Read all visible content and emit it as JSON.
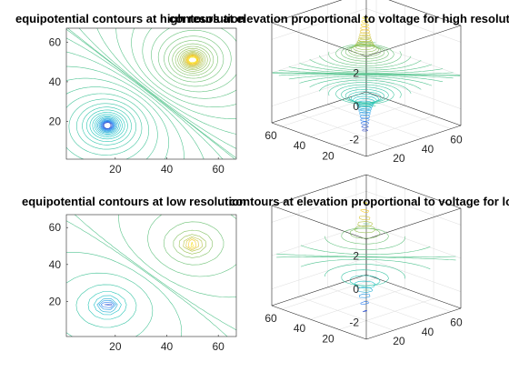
{
  "figure": {
    "background": "#ffffff",
    "colormap": [
      "#3e26a8",
      "#2e87f5",
      "#1ac7c2",
      "#92c15a",
      "#f5c82f",
      "#f9fb15"
    ]
  },
  "chart_data": [
    {
      "type": "contour",
      "title": "equipotential contours at high resolution",
      "xlim": [
        1,
        67
      ],
      "ylim": [
        1,
        67
      ],
      "xticks": [
        20,
        40,
        60
      ],
      "yticks": [
        20,
        40,
        60
      ],
      "charges": [
        {
          "x": 17,
          "y": 18,
          "sign": "negative"
        },
        {
          "x": 50,
          "y": 51,
          "sign": "positive"
        }
      ],
      "levels": 50,
      "resolution": "high"
    },
    {
      "type": "contour3",
      "title": "contours at elevation proportional to voltage for high resolution",
      "xlim": [
        1,
        67
      ],
      "ylim": [
        1,
        67
      ],
      "zlim": [
        -3,
        3
      ],
      "xticks": [
        20,
        40,
        60
      ],
      "yticks": [
        20,
        40,
        60
      ],
      "zticks": [
        -2,
        0,
        2
      ],
      "charges": [
        {
          "x": 17,
          "y": 18,
          "sign": "negative"
        },
        {
          "x": 50,
          "y": 51,
          "sign": "positive"
        }
      ],
      "levels": 50,
      "resolution": "high"
    },
    {
      "type": "contour",
      "title": "equipotential contours at low resolution",
      "xlim": [
        1,
        67
      ],
      "ylim": [
        1,
        67
      ],
      "xticks": [
        20,
        40,
        60
      ],
      "yticks": [
        20,
        40,
        60
      ],
      "charges": [
        {
          "x": 17,
          "y": 18,
          "sign": "negative"
        },
        {
          "x": 50,
          "y": 51,
          "sign": "positive"
        }
      ],
      "levels": 20,
      "resolution": "low"
    },
    {
      "type": "contour3",
      "title": "contours at elevation proportional to voltage for low resolution",
      "xlim": [
        1,
        67
      ],
      "ylim": [
        1,
        67
      ],
      "zlim": [
        -3,
        3
      ],
      "xticks": [
        20,
        40,
        60
      ],
      "yticks": [
        20,
        40,
        60
      ],
      "zticks": [
        -2,
        0,
        2
      ],
      "charges": [
        {
          "x": 17,
          "y": 18,
          "sign": "negative"
        },
        {
          "x": 50,
          "y": 51,
          "sign": "positive"
        }
      ],
      "levels": 20,
      "resolution": "low"
    }
  ]
}
